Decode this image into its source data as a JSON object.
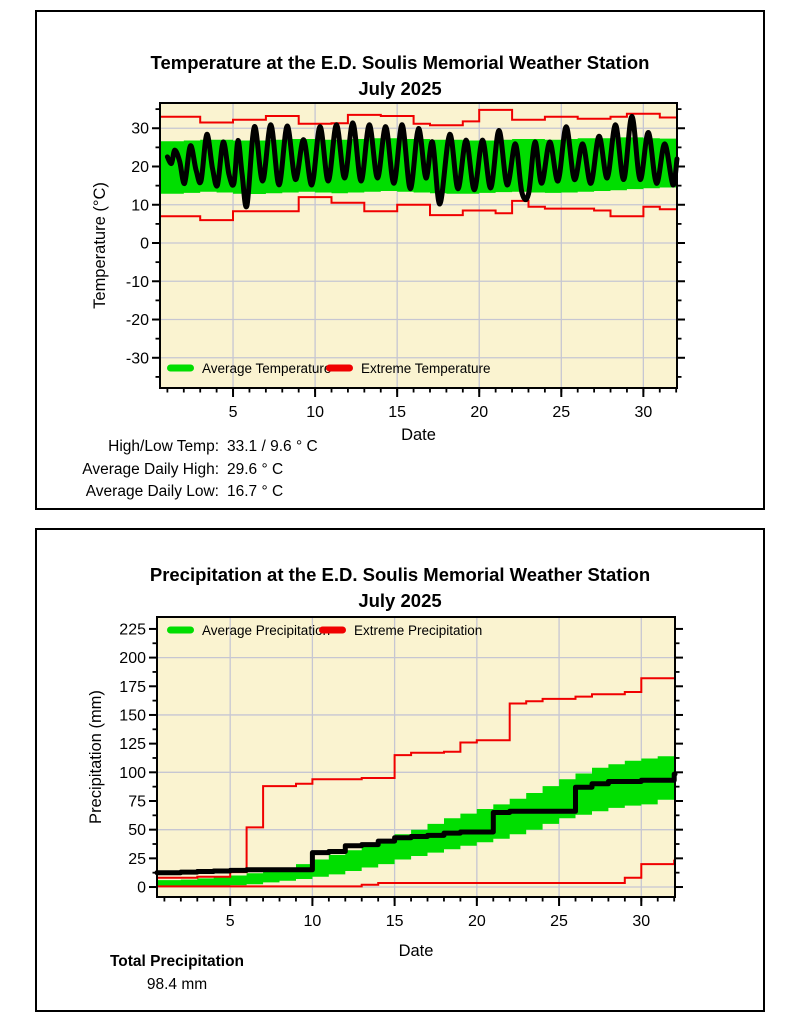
{
  "colors": {
    "plot_bg": "#FAF3D0",
    "grid": "#C6C6D2",
    "green": "#00DE00",
    "red": "#F00000",
    "black": "#000000",
    "frame": "#000000"
  },
  "chart_data": [
    {
      "type": "line",
      "title": "Temperature at the E.D. Soulis Memorial Weather Station",
      "subtitle": "July 2025",
      "xlabel": "Date",
      "ylabel": "Temperature (°C)",
      "xlim": [
        0.55,
        32.05
      ],
      "ylim": [
        -37.9,
        36.6
      ],
      "yticks_major": [
        -30,
        -20,
        -10,
        0,
        10,
        20,
        30
      ],
      "ytick_minor_step": 5,
      "xticks_major": [
        5,
        10,
        15,
        20,
        25,
        30
      ],
      "xtick_minor_days": 32,
      "grid_x": [
        5,
        10,
        15,
        20,
        25,
        30
      ],
      "grid_y": [
        -30,
        -20,
        -10,
        0,
        10,
        20,
        30
      ],
      "legend": [
        {
          "label": "Average Temperature",
          "color": "#00DE00"
        },
        {
          "label": "Extreme Temperature",
          "color": "#F00000"
        }
      ],
      "legend_position": "bottom-left-inside",
      "series": [
        {
          "name": "average-band",
          "type": "band",
          "color": "#00DE00",
          "upper": [
            26.6,
            26.8,
            27,
            27,
            26.8,
            26.8,
            27,
            27.2,
            27.2,
            27,
            27,
            27.2,
            27.4,
            27.4,
            27.2,
            27.2,
            27,
            27,
            26.8,
            26.8,
            27,
            27.2,
            27.2,
            27,
            27.2,
            27.4,
            27.4,
            27.6,
            27.6,
            27.4,
            27.3,
            27.3
          ],
          "lower": [
            12.9,
            13.1,
            13.4,
            13.2,
            12.9,
            12.8,
            13,
            13.2,
            13.4,
            13.2,
            13,
            13.2,
            13.4,
            13.6,
            13.4,
            13.2,
            13,
            12.9,
            12.9,
            13.1,
            13.3,
            13.4,
            13.2,
            13.1,
            13.2,
            13.4,
            13.6,
            13.8,
            14.1,
            14.3,
            14.5,
            14.6
          ]
        },
        {
          "name": "extreme-high",
          "type": "step",
          "color": "#F00000",
          "values": [
            33,
            33,
            31.5,
            31.5,
            32.2,
            32.2,
            33.2,
            33.2,
            31.2,
            31.2,
            31.3,
            33.5,
            33.5,
            33.2,
            33.2,
            31.2,
            30.8,
            30.8,
            31.8,
            34.8,
            34.8,
            32.2,
            32.2,
            33,
            33,
            32.5,
            32.5,
            33,
            33.8,
            33.8,
            32.8,
            32.8
          ]
        },
        {
          "name": "extreme-low",
          "type": "step",
          "color": "#F00000",
          "values": [
            7,
            7,
            6,
            6,
            8.3,
            8.3,
            8.3,
            8.3,
            12,
            12,
            10.5,
            10.5,
            8.3,
            8.3,
            10,
            10,
            7.3,
            7.3,
            8.5,
            8.5,
            7.8,
            11,
            9.5,
            9,
            9,
            9,
            8.5,
            7,
            7,
            9.5,
            8.8,
            8.8
          ]
        },
        {
          "name": "observed-temperature",
          "type": "smooth",
          "color": "#000000",
          "points": [
            [
              1,
              22.5
            ],
            [
              1.25,
              20.8
            ],
            [
              1.45,
              24.3
            ],
            [
              1.75,
              21.3
            ],
            [
              2.05,
              15.6
            ],
            [
              2.4,
              25.4
            ],
            [
              2.75,
              19
            ],
            [
              3.05,
              16.2
            ],
            [
              3.4,
              28.4
            ],
            [
              3.75,
              19.5
            ],
            [
              4.05,
              15.1
            ],
            [
              4.4,
              26.4
            ],
            [
              4.75,
              18
            ],
            [
              5.05,
              15.6
            ],
            [
              5.3,
              26.8
            ],
            [
              5.55,
              18
            ],
            [
              5.85,
              9.8
            ],
            [
              6.3,
              30.4
            ],
            [
              6.8,
              16.2
            ],
            [
              7.3,
              30.9
            ],
            [
              7.8,
              15.2
            ],
            [
              8.3,
              30.6
            ],
            [
              8.8,
              16.6
            ],
            [
              9.3,
              27
            ],
            [
              9.8,
              15.2
            ],
            [
              10.3,
              30.4
            ],
            [
              10.8,
              16.2
            ],
            [
              11.3,
              30.9
            ],
            [
              11.8,
              17
            ],
            [
              12.3,
              31.4
            ],
            [
              12.8,
              16.2
            ],
            [
              13.3,
              30.9
            ],
            [
              13.8,
              17
            ],
            [
              14.3,
              30.4
            ],
            [
              14.8,
              15.6
            ],
            [
              15.3,
              30.9
            ],
            [
              15.8,
              14.2
            ],
            [
              16.3,
              29.9
            ],
            [
              16.75,
              17
            ],
            [
              17.15,
              26.4
            ],
            [
              17.6,
              10.2
            ],
            [
              18.2,
              28.4
            ],
            [
              18.7,
              14.2
            ],
            [
              19.2,
              26.9
            ],
            [
              19.7,
              13.9
            ],
            [
              20.2,
              26.9
            ],
            [
              20.7,
              14.4
            ],
            [
              21.2,
              29.4
            ],
            [
              21.7,
              15.2
            ],
            [
              22.2,
              25.9
            ],
            [
              22.6,
              13.2
            ],
            [
              23,
              12.8
            ],
            [
              23.4,
              26.4
            ],
            [
              23.8,
              15.6
            ],
            [
              24.3,
              26.4
            ],
            [
              24.8,
              16.2
            ],
            [
              25.3,
              30.4
            ],
            [
              25.8,
              16.6
            ],
            [
              26.3,
              25.9
            ],
            [
              26.8,
              15.6
            ],
            [
              27.3,
              27.9
            ],
            [
              27.8,
              17
            ],
            [
              28.3,
              30.9
            ],
            [
              28.8,
              16.6
            ],
            [
              29.3,
              33.1
            ],
            [
              29.8,
              16.6
            ],
            [
              30.3,
              28.9
            ],
            [
              30.8,
              15.6
            ],
            [
              31.3,
              25.9
            ],
            [
              31.8,
              15.2
            ],
            [
              32.05,
              22
            ]
          ]
        }
      ],
      "stats": [
        {
          "label": "High/Low Temp:",
          "value": "33.1 / 9.6 ° C"
        },
        {
          "label": "Average Daily High:",
          "value": "29.6 ° C"
        },
        {
          "label": "Average Daily Low:",
          "value": "16.7 ° C"
        }
      ]
    },
    {
      "type": "line",
      "title": "Precipitation at the E.D. Soulis Memorial Weather Station",
      "subtitle": "July 2025",
      "xlabel": "Date",
      "ylabel": "Precipitation (mm)",
      "xlim": [
        0.55,
        32.05
      ],
      "ylim": [
        -8.7,
        235.4
      ],
      "yticks_major": [
        0,
        25,
        50,
        75,
        100,
        125,
        150,
        175,
        200,
        225
      ],
      "ytick_minor_step": 12.5,
      "xticks_major": [
        5,
        10,
        15,
        20,
        25,
        30
      ],
      "xtick_minor_days": 32,
      "grid_x": [
        5,
        10,
        15,
        20,
        25,
        30
      ],
      "grid_y": [
        0,
        50,
        100,
        150,
        200
      ],
      "legend": [
        {
          "label": "Average Precipitation",
          "color": "#00DE00"
        },
        {
          "label": "Extreme Precipitation",
          "color": "#F00000"
        }
      ],
      "legend_position": "top-left-inside",
      "series": [
        {
          "name": "average-band",
          "type": "band",
          "color": "#00DE00",
          "upper": [
            6,
            6.5,
            7.5,
            8.5,
            10,
            12,
            14.5,
            17,
            20,
            24,
            28,
            32,
            36,
            41,
            46,
            50,
            55,
            60,
            64,
            68,
            72,
            77,
            82,
            88,
            94,
            99,
            104,
            107,
            110,
            112,
            114,
            115
          ],
          "lower": [
            0,
            0,
            0.5,
            1,
            1.5,
            2.5,
            4,
            5.5,
            7,
            9,
            11,
            14,
            17,
            20,
            24,
            27,
            30,
            33,
            36,
            39,
            42,
            46,
            50,
            55,
            60,
            63,
            66,
            69,
            71,
            72,
            76,
            76
          ]
        },
        {
          "name": "extreme-high",
          "type": "step",
          "color": "#F00000",
          "values": [
            8,
            8,
            9,
            9,
            13,
            52,
            88,
            88,
            90,
            94,
            94,
            94,
            95,
            95,
            115,
            117,
            117,
            118,
            126,
            128,
            128,
            160,
            162,
            164,
            164,
            166,
            168,
            168,
            170,
            182,
            182,
            182
          ]
        },
        {
          "name": "extreme-low",
          "type": "step",
          "color": "#F00000",
          "values": [
            0.5,
            0.5,
            0.5,
            0.5,
            0.5,
            0.5,
            0.5,
            0.5,
            0.5,
            0.5,
            0.5,
            0.5,
            2,
            3.5,
            3.5,
            3.5,
            3.5,
            3.5,
            3.5,
            3.5,
            3.5,
            3.5,
            3.5,
            3.5,
            3.5,
            3.5,
            3.5,
            3.5,
            8,
            20,
            20,
            23
          ]
        },
        {
          "name": "observed-precipitation",
          "type": "step-bold",
          "color": "#000000",
          "values": [
            12.5,
            13,
            13.5,
            14,
            14.5,
            15,
            15,
            15,
            15,
            30,
            31,
            36,
            37,
            40,
            43,
            44,
            45,
            47,
            48,
            48,
            65,
            66,
            66,
            66,
            66,
            87,
            90,
            92,
            92,
            93,
            93,
            98.4
          ]
        }
      ],
      "stats_title": "Total Precipitation",
      "stats_value": "98.4 mm"
    }
  ]
}
